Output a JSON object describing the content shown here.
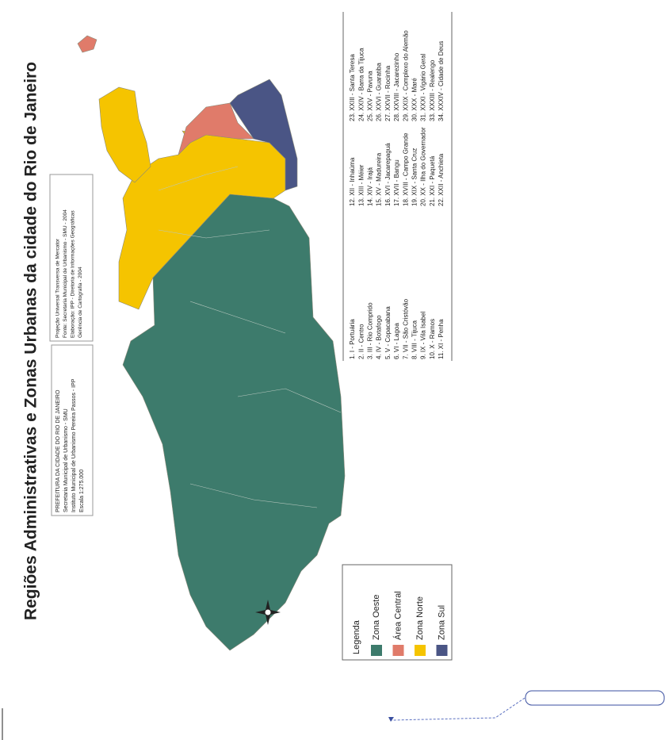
{
  "title": "Regiões Administrativas e Zonas Urbanas da cidade do Rio de Janeiro",
  "legend": {
    "title": "Legenda",
    "items": [
      {
        "label": "Zona Oeste",
        "color": "#3d7b6c"
      },
      {
        "label": "Área Central",
        "color": "#e07b6a"
      },
      {
        "label": "Zona Norte",
        "color": "#f5c400"
      },
      {
        "label": "Zona Sul",
        "color": "#4a5585"
      }
    ]
  },
  "credits": [
    "PREFEITURA DA CIDADE DO RIO DE JANEIRO",
    "Secretaria Municipal de Urbanismo - SMU",
    "Instituto Municipal de Urbanismo Pereira Passos - IPP",
    "Escala 1:275.000"
  ],
  "projection": [
    "Projeção Universal Transversa de Mercator",
    "Fonte: Secretaria Municipal de Urbanismo - SMU - 2004",
    "Elaboração: IPP - Diretoria de Informações Geográficas",
    "Gerência de Cartografia - 2004"
  ],
  "regions": [
    [
      "1. I - Portuária",
      "2. II - Centro",
      "3. III - Rio Comprido",
      "4. IV - Botafogo",
      "5. V - Copacabana",
      "6. VI - Lagoa",
      "7. VII - São Cristóvão",
      "8. VIII - Tijuca",
      "9. IX - Vila Isabel",
      "10. X - Ramos",
      "11. XI - Penha"
    ],
    [
      "12. XII - Inhaúma",
      "13. XIII - Méier",
      "14. XIV - Irajá",
      "15. XV - Madureira",
      "16. XVI - Jacarepaguá",
      "17. XVII - Bangu",
      "18. XVIII - Campo Grande",
      "19. XIX - Santa Cruz",
      "20. XX - Ilha do Governador",
      "21. XXI - Paquetá",
      "22. XXII - Anchieta"
    ],
    [
      "23. XXIII - Santa Teresa",
      "24. XXIV - Barra da Tijuca",
      "25. XXV - Pavuna",
      "26. XXVI - Guaratiba",
      "27. XXVII - Rocinha",
      "28. XXVIII - Jacarezinho",
      "29. XXIX - Complexo do Alemão",
      "30. XXX - Maré",
      "31. XXXI - Vigário Geral",
      "33. XXXIII - Realengo",
      "34. XXXIV - Cidade de Deus"
    ]
  ]
}
